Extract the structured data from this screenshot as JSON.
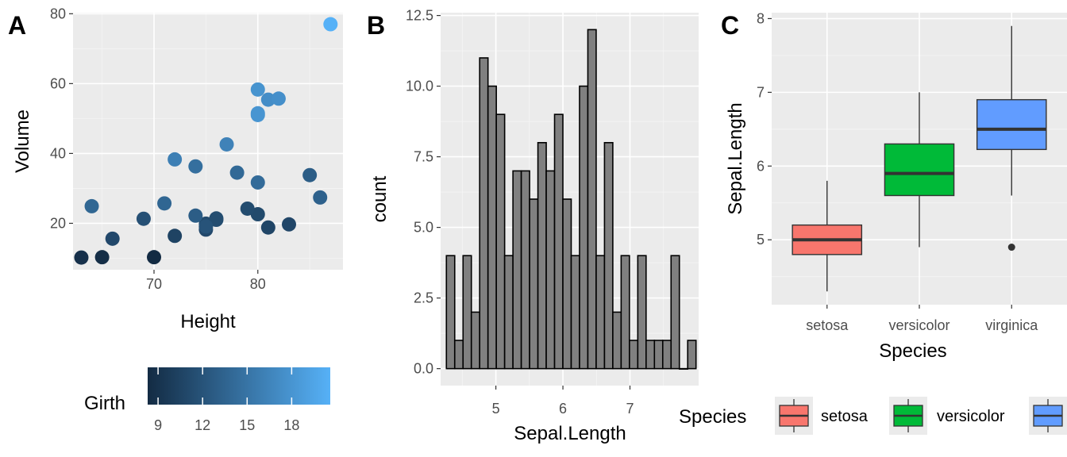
{
  "chart_data": [
    {
      "tag": "A",
      "type": "scatter",
      "xlabel": "Height",
      "ylabel": "Volume",
      "xlim": [
        62.2,
        88.2
      ],
      "ylim": [
        6.7,
        80.3
      ],
      "xticks": [
        70,
        80
      ],
      "yticks": [
        20,
        40,
        60,
        80
      ],
      "color_legend": {
        "title": "Girth",
        "range": [
          8.3,
          20.6
        ],
        "ticks": [
          9,
          12,
          15,
          18
        ],
        "low_color": "#132B43",
        "high_color": "#56B1F7"
      },
      "points": [
        {
          "x": 70,
          "y": 10.3,
          "c": 8.3
        },
        {
          "x": 65,
          "y": 10.3,
          "c": 8.6
        },
        {
          "x": 63,
          "y": 10.2,
          "c": 8.8
        },
        {
          "x": 72,
          "y": 16.4,
          "c": 10.5
        },
        {
          "x": 81,
          "y": 18.8,
          "c": 10.7
        },
        {
          "x": 83,
          "y": 19.7,
          "c": 10.8
        },
        {
          "x": 66,
          "y": 15.6,
          "c": 11.0
        },
        {
          "x": 75,
          "y": 18.2,
          "c": 11.0
        },
        {
          "x": 80,
          "y": 22.6,
          "c": 11.1
        },
        {
          "x": 75,
          "y": 19.9,
          "c": 11.2
        },
        {
          "x": 79,
          "y": 24.2,
          "c": 11.3
        },
        {
          "x": 76,
          "y": 21.0,
          "c": 11.4
        },
        {
          "x": 76,
          "y": 21.4,
          "c": 11.4
        },
        {
          "x": 69,
          "y": 21.3,
          "c": 11.7
        },
        {
          "x": 75,
          "y": 19.1,
          "c": 12.0
        },
        {
          "x": 74,
          "y": 22.2,
          "c": 12.9
        },
        {
          "x": 85,
          "y": 33.8,
          "c": 12.9
        },
        {
          "x": 86,
          "y": 27.4,
          "c": 13.3
        },
        {
          "x": 71,
          "y": 25.7,
          "c": 13.7
        },
        {
          "x": 64,
          "y": 24.9,
          "c": 13.8
        },
        {
          "x": 78,
          "y": 34.5,
          "c": 14.0
        },
        {
          "x": 80,
          "y": 31.7,
          "c": 14.2
        },
        {
          "x": 74,
          "y": 36.3,
          "c": 14.5
        },
        {
          "x": 72,
          "y": 38.3,
          "c": 16.0
        },
        {
          "x": 77,
          "y": 42.6,
          "c": 16.3
        },
        {
          "x": 81,
          "y": 55.4,
          "c": 17.3
        },
        {
          "x": 82,
          "y": 55.7,
          "c": 17.5
        },
        {
          "x": 80,
          "y": 58.3,
          "c": 17.9
        },
        {
          "x": 80,
          "y": 51.5,
          "c": 18.0
        },
        {
          "x": 80,
          "y": 51.0,
          "c": 18.0
        },
        {
          "x": 87,
          "y": 77.0,
          "c": 20.6
        }
      ]
    },
    {
      "tag": "B",
      "type": "bar",
      "subtype": "histogram",
      "xlabel": "Sepal.Length",
      "ylabel": "count",
      "xlim": [
        4.1759,
        8.0241
      ],
      "ylim": [
        -0.6,
        12.6
      ],
      "xticks": [
        5,
        6,
        7
      ],
      "yticks": [
        0.0,
        2.5,
        5.0,
        7.5,
        10.0,
        12.5
      ],
      "ytick_labels": [
        "0.0",
        "2.5",
        "5.0",
        "7.5",
        "10.0",
        "12.5"
      ],
      "bin_start": 4.2621,
      "bin_width": 0.1241,
      "bar_fill": "#808080",
      "bar_stroke": "#000000",
      "counts": [
        4,
        1,
        4,
        2,
        11,
        10,
        9,
        4,
        7,
        7,
        6,
        8,
        7,
        9,
        6,
        4,
        10,
        12,
        4,
        8,
        2,
        4,
        1,
        4,
        1,
        1,
        1,
        4,
        0,
        1
      ]
    },
    {
      "tag": "C",
      "type": "box",
      "xlabel": "Species",
      "ylabel": "Sepal.Length",
      "ylim": [
        4.12,
        8.08
      ],
      "yticks": [
        5,
        6,
        7,
        8
      ],
      "categories": [
        "setosa",
        "versicolor",
        "virginica"
      ],
      "boxes": [
        {
          "name": "setosa",
          "color": "#F8766D",
          "min": 4.3,
          "q1": 4.8,
          "median": 5.0,
          "q3": 5.2,
          "max": 5.8,
          "outliers": []
        },
        {
          "name": "versicolor",
          "color": "#00BA38",
          "min": 4.9,
          "q1": 5.6,
          "median": 5.9,
          "q3": 6.3,
          "max": 7.0,
          "outliers": []
        },
        {
          "name": "virginica",
          "color": "#619CFF",
          "min": 5.6,
          "q1": 6.225,
          "median": 6.5,
          "q3": 6.9,
          "max": 7.9,
          "outliers": [
            4.9
          ]
        }
      ],
      "legend": {
        "title": "Species",
        "entries": [
          "setosa",
          "versicolor",
          "virginica"
        ]
      }
    }
  ]
}
